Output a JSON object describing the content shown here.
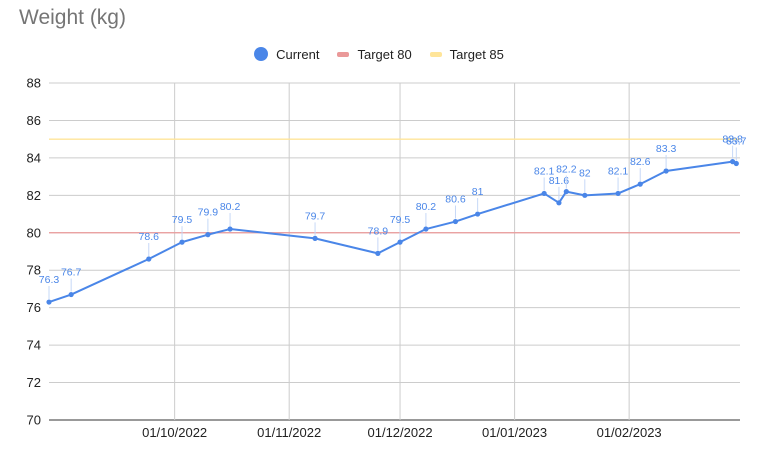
{
  "chart_data": {
    "type": "line",
    "title": "Weight (kg)",
    "xlabel": "",
    "ylabel": "",
    "ylim": [
      70,
      88
    ],
    "yticks": [
      70,
      72,
      74,
      76,
      78,
      80,
      82,
      84,
      86,
      88
    ],
    "xlim": [
      "2022-08-28",
      "2023-03-03"
    ],
    "xticks": [
      {
        "date": "2022-10-01",
        "label": "01/10/2022"
      },
      {
        "date": "2022-11-01",
        "label": "01/11/2022"
      },
      {
        "date": "2022-12-01",
        "label": "01/12/2022"
      },
      {
        "date": "2023-01-01",
        "label": "01/01/2023"
      },
      {
        "date": "2023-02-01",
        "label": "01/02/2023"
      }
    ],
    "grid": true,
    "legend_position": "top",
    "series": [
      {
        "name": "Current",
        "color": "#4a86e8",
        "marker": "dot",
        "data_labels": true,
        "points": [
          {
            "x": "2022-08-28",
            "y": 76.3,
            "label": "76.3"
          },
          {
            "x": "2022-09-03",
            "y": 76.7,
            "label": "76.7"
          },
          {
            "x": "2022-09-24",
            "y": 78.6,
            "label": "78.6"
          },
          {
            "x": "2022-10-03",
            "y": 79.5,
            "label": "79.5"
          },
          {
            "x": "2022-10-10",
            "y": 79.9,
            "label": "79.9"
          },
          {
            "x": "2022-10-16",
            "y": 80.2,
            "label": "80.2"
          },
          {
            "x": "2022-11-08",
            "y": 79.7,
            "label": "79.7"
          },
          {
            "x": "2022-11-25",
            "y": 78.9,
            "label": "78.9"
          },
          {
            "x": "2022-12-01",
            "y": 79.5,
            "label": "79.5"
          },
          {
            "x": "2022-12-08",
            "y": 80.2,
            "label": "80.2"
          },
          {
            "x": "2022-12-16",
            "y": 80.6,
            "label": "80.6"
          },
          {
            "x": "2022-12-22",
            "y": 81.0,
            "label": "81"
          },
          {
            "x": "2023-01-09",
            "y": 82.1,
            "label": "82.1"
          },
          {
            "x": "2023-01-13",
            "y": 81.6,
            "label": "81.6"
          },
          {
            "x": "2023-01-15",
            "y": 82.2,
            "label": "82.2"
          },
          {
            "x": "2023-01-20",
            "y": 82.0,
            "label": "82"
          },
          {
            "x": "2023-01-29",
            "y": 82.1,
            "label": "82.1"
          },
          {
            "x": "2023-02-04",
            "y": 82.6,
            "label": "82.6"
          },
          {
            "x": "2023-02-11",
            "y": 83.3,
            "label": "83.3"
          },
          {
            "x": "2023-03-01",
            "y": 83.8,
            "label": "83.8"
          },
          {
            "x": "2023-03-02",
            "y": 83.7,
            "label": "83.7"
          }
        ]
      },
      {
        "name": "Target 80",
        "color": "#ea9999",
        "y": 80
      },
      {
        "name": "Target 85",
        "color": "#ffe599",
        "y": 85
      }
    ]
  }
}
